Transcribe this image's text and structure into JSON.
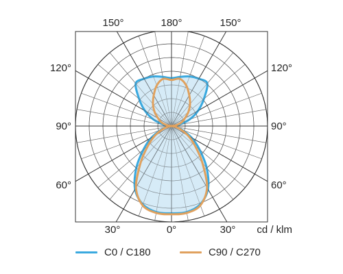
{
  "chart_data": {
    "type": "polar",
    "unit_label": "cd / klm",
    "angle_labels": {
      "top_left": "150°",
      "top_center": "180°",
      "top_right": "150°",
      "upper_left": "120°",
      "upper_right": "120°",
      "mid_left": "90°",
      "mid_right": "90°",
      "lower_left": "60°",
      "lower_right": "60°",
      "bottom_left": "30°",
      "bottom_center": "0°",
      "bottom_right": "30°"
    },
    "grid": true,
    "legend_position": "bottom",
    "r_max": 1,
    "series": [
      {
        "name": "C0 / C180",
        "color": "#3aa9df",
        "fill": "#cfe8f6",
        "angles_deg": [
          0,
          10,
          20,
          30,
          40,
          50,
          60,
          70,
          80,
          90,
          100,
          110,
          120,
          130,
          140,
          150,
          160,
          170,
          180
        ],
        "values": [
          0.91,
          0.91,
          0.87,
          0.76,
          0.57,
          0.38,
          0.24,
          0.12,
          0.05,
          0.0,
          0.08,
          0.2,
          0.32,
          0.44,
          0.58,
          0.57,
          0.55,
          0.52,
          0.5
        ]
      },
      {
        "name": "C90 / C270",
        "color": "#e0a15e",
        "angles_deg": [
          0,
          10,
          20,
          30,
          40,
          50,
          60,
          70,
          80,
          90,
          100,
          110,
          120,
          130,
          140,
          150,
          160,
          170,
          180
        ],
        "values": [
          0.92,
          0.92,
          0.88,
          0.74,
          0.5,
          0.32,
          0.2,
          0.1,
          0.04,
          0.0,
          0.05,
          0.11,
          0.16,
          0.23,
          0.3,
          0.37,
          0.45,
          0.5,
          0.48
        ]
      }
    ]
  },
  "legend": {
    "c0_label": "C0 / C180",
    "c90_label": "C90 / C270"
  }
}
